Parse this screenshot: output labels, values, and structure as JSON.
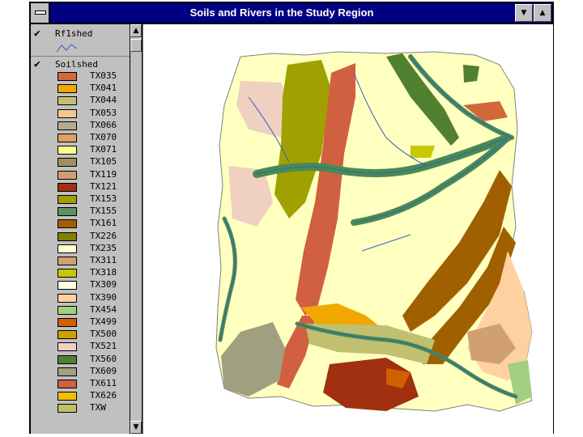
{
  "window": {
    "title": "Soils and Rivers in the Study Region",
    "minimize_glyph": "▼",
    "maximize_glyph": "▲"
  },
  "legend": {
    "themes": [
      {
        "name": "Rf1shed",
        "checked": "✔"
      },
      {
        "name": "Soilshed",
        "checked": "✔"
      }
    ],
    "items": [
      {
        "code": "TX035",
        "color": "#d0683a"
      },
      {
        "code": "TX041",
        "color": "#f0a800"
      },
      {
        "code": "TX044",
        "color": "#c0c070"
      },
      {
        "code": "TX053",
        "color": "#f0c890"
      },
      {
        "code": "TX066",
        "color": "#b8a890"
      },
      {
        "code": "TX070",
        "color": "#e0a060"
      },
      {
        "code": "TX071",
        "color": "#ffff90"
      },
      {
        "code": "TX105",
        "color": "#a09060"
      },
      {
        "code": "TX119",
        "color": "#d0a070"
      },
      {
        "code": "TX121",
        "color": "#a03010"
      },
      {
        "code": "TX153",
        "color": "#a0a000"
      },
      {
        "code": "TX155",
        "color": "#609060"
      },
      {
        "code": "TX161",
        "color": "#a06000"
      },
      {
        "code": "TX226",
        "color": "#808000"
      },
      {
        "code": "TX235",
        "color": "#ffffd0"
      },
      {
        "code": "TX311",
        "color": "#d0a070"
      },
      {
        "code": "TX318",
        "color": "#c8c800"
      },
      {
        "code": "TX309",
        "color": "#ffffe0"
      },
      {
        "code": "TX390",
        "color": "#ffd0a0"
      },
      {
        "code": "TX454",
        "color": "#a0d080"
      },
      {
        "code": "TX499",
        "color": "#d06000"
      },
      {
        "code": "TX500",
        "color": "#d0a000"
      },
      {
        "code": "TX521",
        "color": "#f0d0c0"
      },
      {
        "code": "TX560",
        "color": "#508030"
      },
      {
        "code": "TX609",
        "color": "#a0a080"
      },
      {
        "code": "TX611",
        "color": "#d06040"
      },
      {
        "code": "TX626",
        "color": "#f0c000"
      },
      {
        "code": "TXW",
        "color": "#c0c060"
      }
    ]
  },
  "scrollbar": {
    "up_glyph": "▲",
    "down_glyph": "▼"
  },
  "map": {
    "river_color": "#3060c0",
    "river_buffer_color": "#4a8a50",
    "background_color": "#ffffff"
  }
}
